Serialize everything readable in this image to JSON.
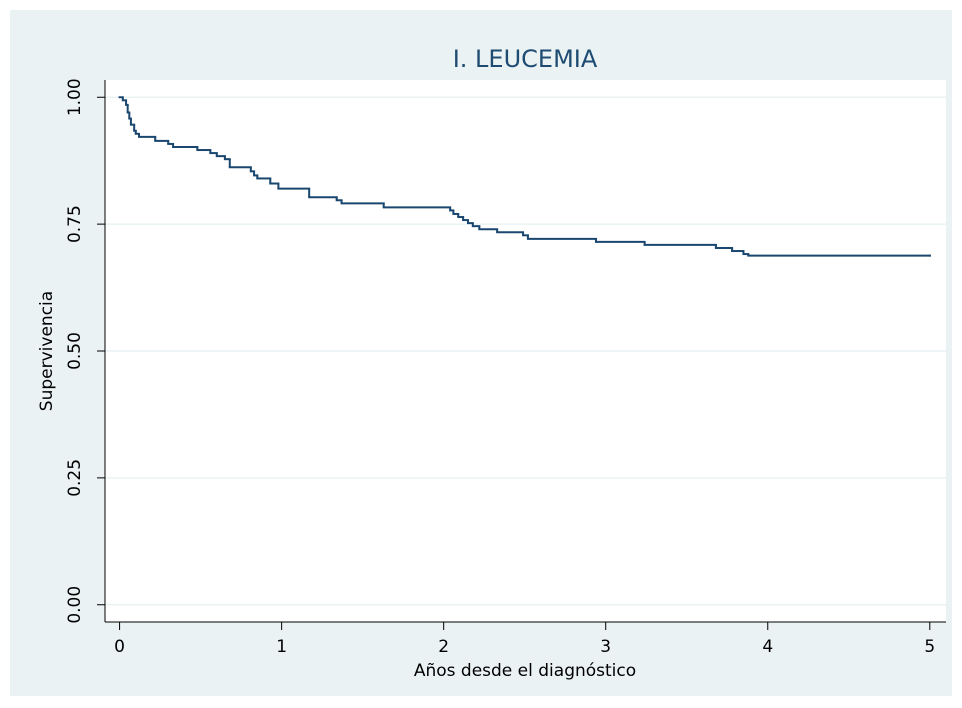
{
  "chart_data": {
    "type": "step",
    "title": "I. LEUCEMIA",
    "x_label": "Años desde el diagnóstico",
    "y_label": "Supervivencia",
    "color": "#1a476f",
    "grid": true,
    "xlim": [
      -0.09,
      5.1
    ],
    "ylim": [
      -0.034,
      1.034
    ],
    "xticks": [
      0,
      1,
      2,
      3,
      4,
      5
    ],
    "yticks": [
      {
        "value": 0,
        "label": "0.00"
      },
      {
        "value": 0.25,
        "label": "0.25"
      },
      {
        "value": 0.5,
        "label": "0.50"
      },
      {
        "value": 0.75,
        "label": "0.75"
      },
      {
        "value": 1,
        "label": "1.00"
      }
    ],
    "x": [
      0,
      0.02,
      0.04,
      0.05,
      0.06,
      0.07,
      0.09,
      0.1,
      0.12,
      0.22,
      0.3,
      0.33,
      0.48,
      0.56,
      0.6,
      0.65,
      0.68,
      0.81,
      0.83,
      0.85,
      0.93,
      0.98,
      1.17,
      1.34,
      1.37,
      1.63,
      2.04,
      2.06,
      2.09,
      2.12,
      2.15,
      2.18,
      2.22,
      2.33,
      2.49,
      2.52,
      2.94,
      3.24,
      3.68,
      3.78,
      3.85,
      3.88,
      5.0
    ],
    "values": [
      1.0,
      0.994,
      0.985,
      0.97,
      0.958,
      0.946,
      0.934,
      0.928,
      0.922,
      0.914,
      0.908,
      0.902,
      0.896,
      0.89,
      0.884,
      0.878,
      0.862,
      0.854,
      0.846,
      0.84,
      0.83,
      0.82,
      0.803,
      0.797,
      0.791,
      0.783,
      0.777,
      0.77,
      0.764,
      0.758,
      0.752,
      0.746,
      0.74,
      0.734,
      0.728,
      0.721,
      0.715,
      0.709,
      0.703,
      0.697,
      0.691,
      0.688,
      0.688
    ]
  }
}
